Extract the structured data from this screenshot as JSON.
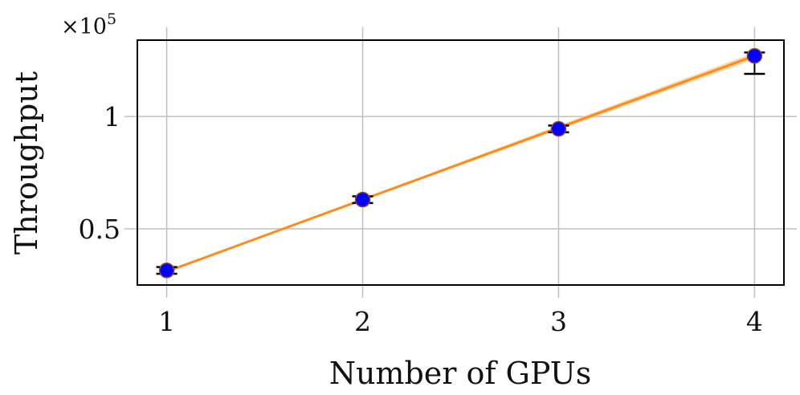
{
  "chart_data": {
    "type": "scatter",
    "xlabel": "Number of GPUs",
    "ylabel": "Throughput",
    "y_multiplier_label": "×10",
    "y_multiplier_exponent": "5",
    "x_ticks": [
      {
        "value": 1,
        "label": "1"
      },
      {
        "value": 2,
        "label": "2"
      },
      {
        "value": 3,
        "label": "3"
      },
      {
        "value": 4,
        "label": "4"
      }
    ],
    "y_ticks": [
      {
        "value": 50000,
        "label": "0.5"
      },
      {
        "value": 100000,
        "label": "1"
      }
    ],
    "xlim": [
      0.85,
      4.15
    ],
    "ylim": [
      25000,
      134000
    ],
    "grid": true,
    "points": [
      {
        "x": 1,
        "y": 31500,
        "err_low": 1500,
        "err_high": 1500
      },
      {
        "x": 2,
        "y": 63000,
        "err_low": 1500,
        "err_high": 1500
      },
      {
        "x": 3,
        "y": 94500,
        "err_low": 1500,
        "err_high": 1500
      },
      {
        "x": 4,
        "y": 127000,
        "err_low": 8000,
        "err_high": 1500
      }
    ],
    "fit": {
      "x": [
        1,
        4
      ],
      "y": [
        31000,
        127000
      ],
      "band_at_max": 3000
    },
    "colors": {
      "marker_fill": "#0000ff",
      "marker_edge": "#8b4a3a",
      "fit_line": "#ff8c1a",
      "fit_band": "#ffc98a",
      "grid": "#bfbfbf"
    }
  }
}
